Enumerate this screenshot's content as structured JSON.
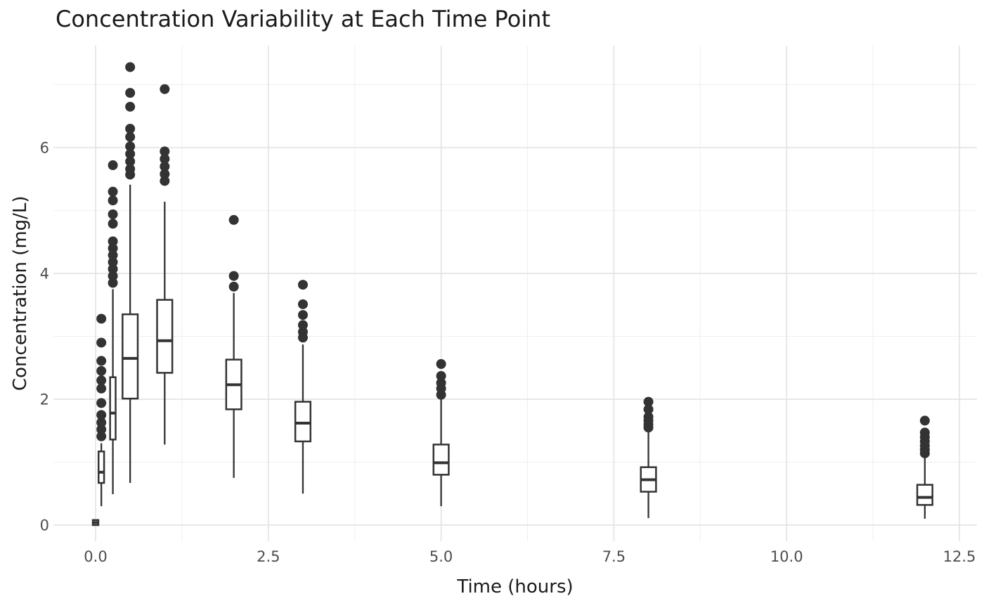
{
  "title": "Concentration Variability at Each Time Point",
  "x_axis": {
    "label": "Time (hours)",
    "ticks": [
      "0.0",
      "2.5",
      "5.0",
      "7.5",
      "10.0",
      "12.5"
    ],
    "tick_values": [
      0,
      2.5,
      5,
      7.5,
      10,
      12.5
    ],
    "minor_values": [
      1.25,
      3.75,
      6.25,
      8.75,
      11.25
    ],
    "range": [
      -0.61,
      12.76
    ]
  },
  "y_axis": {
    "label": "Concentration (mg/L)",
    "ticks": [
      "0",
      "2",
      "4",
      "6"
    ],
    "tick_values": [
      0,
      2,
      4,
      6
    ],
    "minor_values": [
      1,
      3,
      5,
      7
    ],
    "range": [
      -0.26,
      7.62
    ]
  },
  "style": {
    "box_stroke": "#333333",
    "box_fill": "#ffffff",
    "outlier_fill": "#333333",
    "grid_major": "#e4e4e4",
    "grid_minor": "#f0f0f0",
    "background": "#ffffff"
  },
  "chart_data": {
    "type": "boxplot",
    "title": "Concentration Variability at Each Time Point",
    "xlabel": "Time (hours)",
    "ylabel": "Concentration (mg/L)",
    "xlim": [
      -0.61,
      12.76
    ],
    "ylim": [
      -0.26,
      7.62
    ],
    "grid": "on",
    "legend": "none",
    "boxes": [
      {
        "time": 0,
        "label": "0",
        "width": 0.08,
        "q1": 0,
        "median": 0.04,
        "q3": 0.08,
        "whisker_low": 0,
        "whisker_high": 0.08,
        "outliers": []
      },
      {
        "time": 0.083,
        "label": "0.083",
        "width": 0.08,
        "q1": 0.67,
        "median": 0.84,
        "q3": 1.17,
        "whisker_low": 0.3,
        "whisker_high": 1.3,
        "outliers": [
          1.41,
          1.52,
          1.63,
          1.75,
          1.94,
          2.17,
          2.3,
          2.45,
          2.61,
          2.9,
          3.28
        ]
      },
      {
        "time": 0.25,
        "label": "0.25",
        "width": 0.08,
        "q1": 1.36,
        "median": 1.78,
        "q3": 2.35,
        "whisker_low": 0.49,
        "whisker_high": 3.75,
        "outliers": [
          3.85,
          3.96,
          4.07,
          4.18,
          4.29,
          4.4,
          4.51,
          4.79,
          4.94,
          5.16,
          5.3,
          5.72
        ]
      },
      {
        "time": 0.5,
        "label": "0.5",
        "width": 0.22,
        "q1": 2.01,
        "median": 2.65,
        "q3": 3.35,
        "whisker_low": 0.67,
        "whisker_high": 5.41,
        "outliers": [
          5.57,
          5.66,
          5.78,
          5.9,
          6.02,
          6.17,
          6.3,
          6.65,
          6.87,
          7.28
        ]
      },
      {
        "time": 1,
        "label": "1",
        "width": 0.22,
        "q1": 2.42,
        "median": 2.93,
        "q3": 3.58,
        "whisker_low": 1.28,
        "whisker_high": 5.14,
        "outliers": [
          5.47,
          5.58,
          5.7,
          5.82,
          5.94,
          6.93
        ]
      },
      {
        "time": 2,
        "label": "2",
        "width": 0.22,
        "q1": 1.84,
        "median": 2.23,
        "q3": 2.63,
        "whisker_low": 0.75,
        "whisker_high": 3.69,
        "outliers": [
          3.79,
          3.96,
          4.85
        ]
      },
      {
        "time": 3,
        "label": "3",
        "width": 0.22,
        "q1": 1.33,
        "median": 1.62,
        "q3": 1.96,
        "whisker_low": 0.5,
        "whisker_high": 2.87,
        "outliers": [
          2.98,
          3.07,
          3.18,
          3.34,
          3.51,
          3.82
        ]
      },
      {
        "time": 5,
        "label": "5",
        "width": 0.22,
        "q1": 0.8,
        "median": 0.99,
        "q3": 1.28,
        "whisker_low": 0.3,
        "whisker_high": 2.0,
        "outliers": [
          2.07,
          2.17,
          2.26,
          2.37,
          2.56
        ]
      },
      {
        "time": 8,
        "label": "8",
        "width": 0.22,
        "q1": 0.53,
        "median": 0.72,
        "q3": 0.92,
        "whisker_low": 0.11,
        "whisker_high": 1.5,
        "outliers": [
          1.55,
          1.6,
          1.66,
          1.72,
          1.84,
          1.96
        ]
      },
      {
        "time": 12,
        "label": "12",
        "width": 0.22,
        "q1": 0.32,
        "median": 0.44,
        "q3": 0.64,
        "whisker_low": 0.1,
        "whisker_high": 1.08,
        "outliers": [
          1.14,
          1.2,
          1.26,
          1.33,
          1.4,
          1.47,
          1.66
        ]
      }
    ]
  }
}
